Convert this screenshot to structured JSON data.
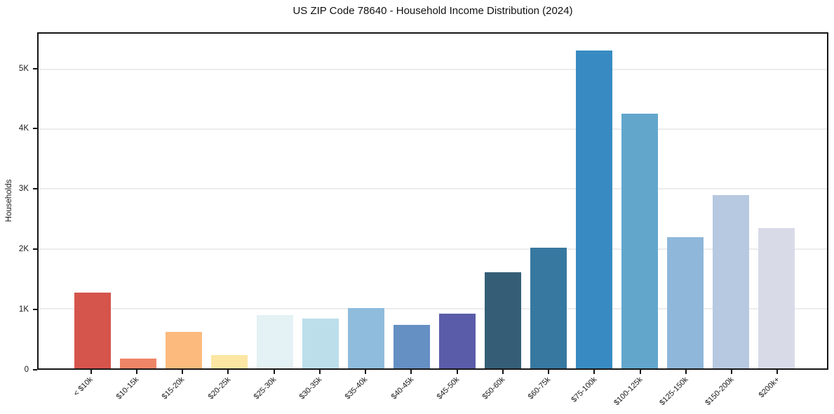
{
  "chart_data": {
    "type": "bar",
    "title": "US ZIP Code 78640 - Household Income Distribution (2024)",
    "xlabel": "",
    "ylabel": "Households",
    "categories": [
      "< $10k",
      "$10-15k",
      "$15-20k",
      "$20-25k",
      "$25-30k",
      "$30-35k",
      "$35-40k",
      "$40-45k",
      "$45-50k",
      "$50-60k",
      "$60-75k",
      "$75-100k",
      "$100-125k",
      "$125-150k",
      "$150-200k",
      "$200k+"
    ],
    "values": [
      1270,
      160,
      615,
      220,
      890,
      835,
      1005,
      730,
      915,
      1610,
      2025,
      5320,
      4260,
      2200,
      2900,
      2350
    ],
    "bar_colors": [
      "#d5544c",
      "#ef8567",
      "#fcbb7c",
      "#fbe6a3",
      "#e4f1f5",
      "#bcdeeb",
      "#8fbcdc",
      "#6590c4",
      "#5a5ca9",
      "#355e76",
      "#3778a0",
      "#388bc2",
      "#62a6cc",
      "#8fb7da",
      "#b7c9e1",
      "#d8dae8"
    ],
    "ylim": [
      0,
      5600
    ],
    "yticks": [
      {
        "value": 0,
        "label": "0"
      },
      {
        "value": 1000,
        "label": "1K"
      },
      {
        "value": 2000,
        "label": "2K"
      },
      {
        "value": 3000,
        "label": "3K"
      },
      {
        "value": 4000,
        "label": "4K"
      },
      {
        "value": 5000,
        "label": "5K"
      }
    ],
    "grid": "horizontal-only",
    "legend": "none",
    "bar_width_fraction": 0.8
  },
  "colors": {
    "background": "#ffffff",
    "axis": "#151515",
    "grid": "#ececef",
    "text": "#1a1a1a"
  }
}
